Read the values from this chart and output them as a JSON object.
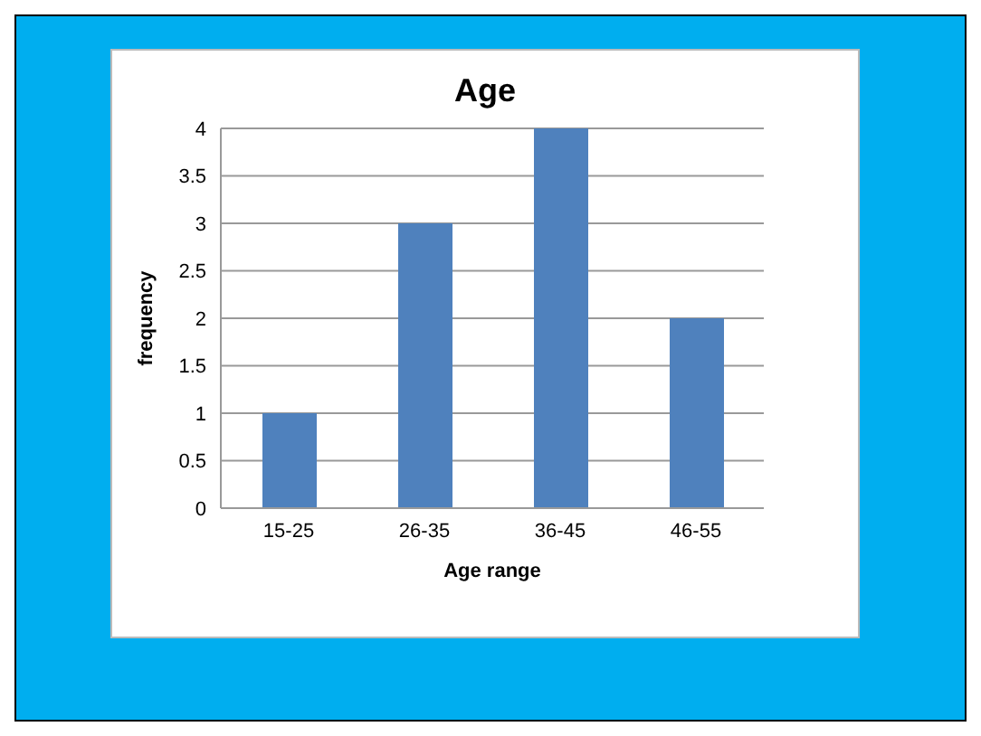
{
  "chart_data": {
    "type": "bar",
    "title": "Age",
    "xlabel": "Age range",
    "ylabel": "frequency",
    "categories": [
      "15-25",
      "26-35",
      "36-45",
      "46-55"
    ],
    "values": [
      1,
      3,
      4,
      2
    ],
    "color": "#4f81bd",
    "ylim": [
      0,
      4
    ],
    "yticks": [
      0,
      0.5,
      1,
      1.5,
      2,
      2.5,
      3,
      3.5,
      4
    ],
    "grid": "y"
  }
}
